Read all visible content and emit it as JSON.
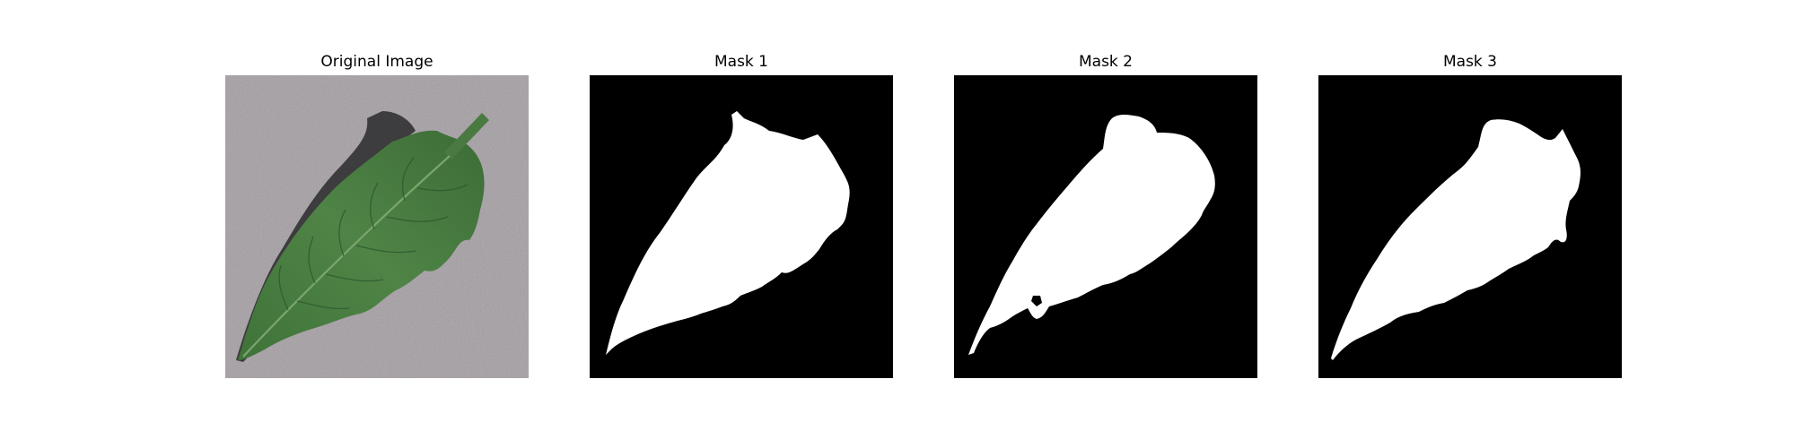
{
  "figure": {
    "panels": [
      {
        "title": "Original Image"
      },
      {
        "title": "Mask 1"
      },
      {
        "title": "Mask 2"
      },
      {
        "title": "Mask 3"
      }
    ]
  },
  "colors": {
    "background": "#ffffff",
    "mask_background": "#000000",
    "mask_foreground": "#ffffff",
    "surface": "#a49ea3",
    "leaf": "#4c7f43",
    "leaf_dark": "#2f5a2e",
    "shadow": "#2a2a2c"
  }
}
